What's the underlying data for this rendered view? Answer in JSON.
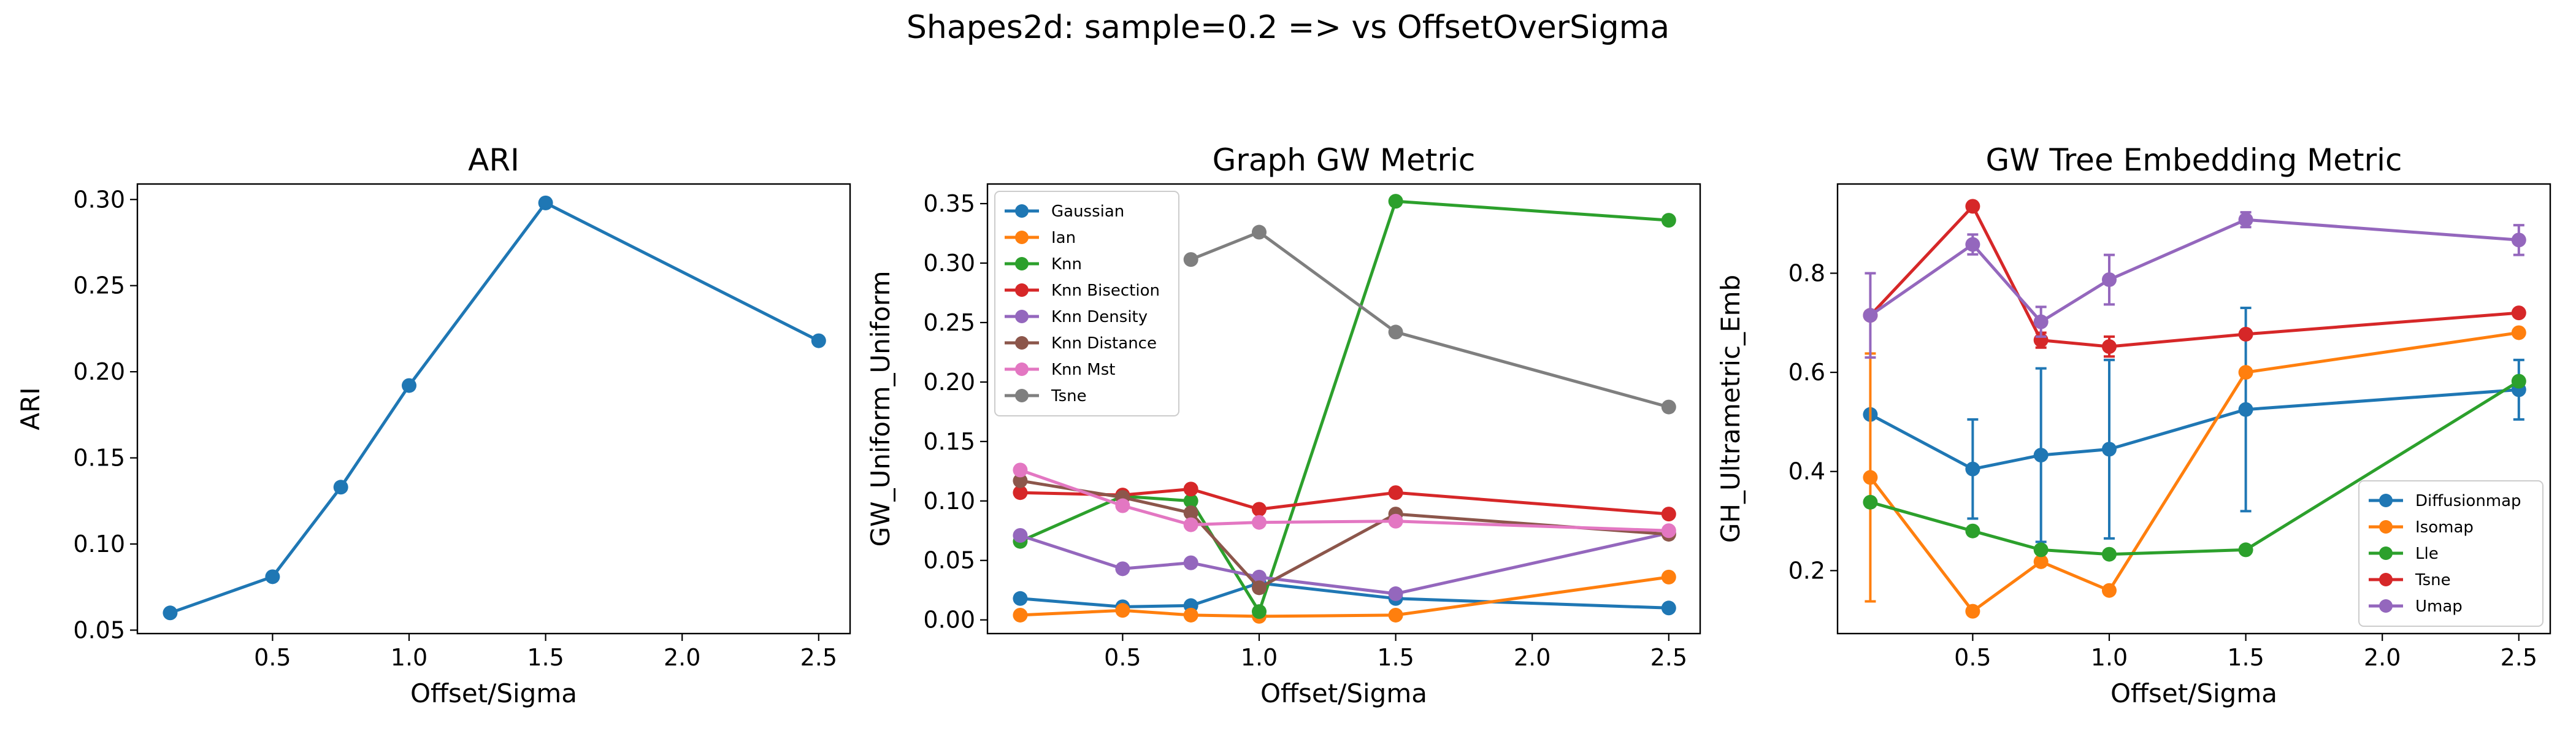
{
  "suptitle": "Shapes2d: sample=0.2 => vs OffsetOverSigma",
  "chart_data": [
    {
      "type": "line",
      "title": "ARI",
      "xlabel": "Offset/Sigma",
      "ylabel": "ARI",
      "xlim": [
        0.005,
        2.615
      ],
      "ylim": [
        0.048,
        0.309
      ],
      "xticks": [
        0.5,
        1.0,
        1.5,
        2.0,
        2.5
      ],
      "xtick_labels": [
        "0.5",
        "1.0",
        "1.5",
        "2.0",
        "2.5"
      ],
      "yticks": [
        0.05,
        0.1,
        0.15,
        0.2,
        0.25,
        0.3
      ],
      "ytick_labels": [
        "0.05",
        "0.10",
        "0.15",
        "0.20",
        "0.25",
        "0.30"
      ],
      "legend": null,
      "series": [
        {
          "name": "",
          "color": "#1f77b4",
          "marker": "circle",
          "points": [
            [
              0.125,
              0.06
            ],
            [
              0.5,
              0.081
            ],
            [
              0.75,
              0.133
            ],
            [
              1.0,
              0.192
            ],
            [
              1.5,
              0.298
            ],
            [
              2.5,
              0.218
            ]
          ]
        }
      ]
    },
    {
      "type": "line",
      "title": "Graph GW Metric",
      "xlabel": "Offset/Sigma",
      "ylabel": "GW_Uniform_Uniform",
      "xlim": [
        0.005,
        2.615
      ],
      "ylim": [
        -0.0115,
        0.3665
      ],
      "xticks": [
        0.5,
        1.0,
        1.5,
        2.0,
        2.5
      ],
      "xtick_labels": [
        "0.5",
        "1.0",
        "1.5",
        "2.0",
        "2.5"
      ],
      "yticks": [
        0.0,
        0.05,
        0.1,
        0.15,
        0.2,
        0.25,
        0.3,
        0.35
      ],
      "ytick_labels": [
        "0.00",
        "0.05",
        "0.10",
        "0.15",
        "0.20",
        "0.25",
        "0.30",
        "0.35"
      ],
      "legend": "top-left",
      "series": [
        {
          "name": "Gaussian",
          "color": "#1f77b4",
          "marker": "circle",
          "points": [
            [
              0.125,
              0.018
            ],
            [
              0.5,
              0.011
            ],
            [
              0.75,
              0.012
            ],
            [
              1.0,
              0.031
            ],
            [
              1.5,
              0.018
            ],
            [
              2.5,
              0.01
            ]
          ]
        },
        {
          "name": "Ian",
          "color": "#ff7f0e",
          "marker": "circle",
          "points": [
            [
              0.125,
              0.004
            ],
            [
              0.5,
              0.008
            ],
            [
              0.75,
              0.004
            ],
            [
              1.0,
              0.003
            ],
            [
              1.5,
              0.004
            ],
            [
              2.5,
              0.036
            ]
          ]
        },
        {
          "name": "Knn",
          "color": "#2ca02c",
          "marker": "circle",
          "points": [
            [
              0.125,
              0.066
            ],
            [
              0.5,
              0.104
            ],
            [
              0.75,
              0.1
            ],
            [
              1.0,
              0.007
            ],
            [
              1.5,
              0.352
            ],
            [
              2.5,
              0.336
            ]
          ]
        },
        {
          "name": "Knn Bisection",
          "color": "#d62728",
          "marker": "circle",
          "points": [
            [
              0.125,
              0.107
            ],
            [
              0.5,
              0.105
            ],
            [
              0.75,
              0.11
            ],
            [
              1.0,
              0.093
            ],
            [
              1.5,
              0.107
            ],
            [
              2.5,
              0.089
            ]
          ]
        },
        {
          "name": "Knn Density",
          "color": "#9467bd",
          "marker": "circle",
          "points": [
            [
              0.125,
              0.071
            ],
            [
              0.5,
              0.043
            ],
            [
              0.75,
              0.048
            ],
            [
              1.0,
              0.036
            ],
            [
              1.5,
              0.022
            ],
            [
              2.5,
              0.073
            ]
          ]
        },
        {
          "name": "Knn Distance",
          "color": "#8c564b",
          "marker": "circle",
          "points": [
            [
              0.125,
              0.117
            ],
            [
              0.5,
              0.103
            ],
            [
              0.75,
              0.09
            ],
            [
              1.0,
              0.027
            ],
            [
              1.5,
              0.089
            ],
            [
              2.5,
              0.072
            ]
          ]
        },
        {
          "name": "Knn Mst",
          "color": "#e377c2",
          "marker": "circle",
          "points": [
            [
              0.125,
              0.126
            ],
            [
              0.5,
              0.096
            ],
            [
              0.75,
              0.08
            ],
            [
              1.0,
              0.082
            ],
            [
              1.5,
              0.083
            ],
            [
              2.5,
              0.075
            ]
          ]
        },
        {
          "name": "Tsne",
          "color": "#7f7f7f",
          "marker": "circle",
          "points": [
            [
              0.75,
              0.303
            ],
            [
              1.0,
              0.326
            ],
            [
              1.5,
              0.242
            ],
            [
              2.5,
              0.179
            ]
          ]
        }
      ]
    },
    {
      "type": "line",
      "title": "GW Tree Embedding Metric",
      "xlabel": "Offset/Sigma",
      "ylabel": "GH_Ultrametric_Emb",
      "xlim": [
        0.005,
        2.615
      ],
      "ylim": [
        0.073,
        0.98
      ],
      "xticks": [
        0.5,
        1.0,
        1.5,
        2.0,
        2.5
      ],
      "xtick_labels": [
        "0.5",
        "1.0",
        "1.5",
        "2.0",
        "2.5"
      ],
      "yticks": [
        0.2,
        0.4,
        0.6,
        0.8
      ],
      "ytick_labels": [
        "0.2",
        "0.4",
        "0.6",
        "0.8"
      ],
      "legend": "bottom-right",
      "series": [
        {
          "name": "Diffusionmap",
          "color": "#1f77b4",
          "marker": "circle",
          "points": [
            [
              0.125,
              0.515
            ],
            [
              0.5,
              0.405
            ],
            [
              0.75,
              0.433
            ],
            [
              1.0,
              0.445
            ],
            [
              1.5,
              0.525
            ],
            [
              2.5,
              0.565
            ]
          ],
          "errors": [
            0.0,
            0.1,
            0.175,
            0.18,
            0.205,
            0.06
          ]
        },
        {
          "name": "Isomap",
          "color": "#ff7f0e",
          "marker": "circle",
          "points": [
            [
              0.125,
              0.388
            ],
            [
              0.5,
              0.118
            ],
            [
              0.75,
              0.218
            ],
            [
              1.0,
              0.16
            ],
            [
              1.5,
              0.6
            ],
            [
              2.5,
              0.68
            ]
          ],
          "errors": [
            0.25,
            0.0,
            0.0,
            0.0,
            0.0,
            0.0
          ]
        },
        {
          "name": "Lle",
          "color": "#2ca02c",
          "marker": "circle",
          "points": [
            [
              0.125,
              0.338
            ],
            [
              0.5,
              0.28
            ],
            [
              0.75,
              0.242
            ],
            [
              1.0,
              0.233
            ],
            [
              1.5,
              0.242
            ],
            [
              2.5,
              0.582
            ]
          ],
          "errors": [
            0.0,
            0.0,
            0.0,
            0.0,
            0.0,
            0.0
          ]
        },
        {
          "name": "Tsne",
          "color": "#d62728",
          "marker": "circle",
          "points": [
            [
              0.125,
              0.715
            ],
            [
              0.5,
              0.935
            ],
            [
              0.75,
              0.665
            ],
            [
              1.0,
              0.652
            ],
            [
              1.5,
              0.677
            ],
            [
              2.5,
              0.72
            ]
          ],
          "errors": [
            0.0,
            0.0,
            0.015,
            0.02,
            0.0,
            0.0
          ]
        },
        {
          "name": "Umap",
          "color": "#9467bd",
          "marker": "circle",
          "points": [
            [
              0.125,
              0.715
            ],
            [
              0.5,
              0.858
            ],
            [
              0.75,
              0.702
            ],
            [
              1.0,
              0.787
            ],
            [
              1.5,
              0.908
            ],
            [
              2.5,
              0.867
            ]
          ],
          "errors": [
            0.085,
            0.02,
            0.03,
            0.05,
            0.015,
            0.03
          ]
        }
      ]
    }
  ]
}
